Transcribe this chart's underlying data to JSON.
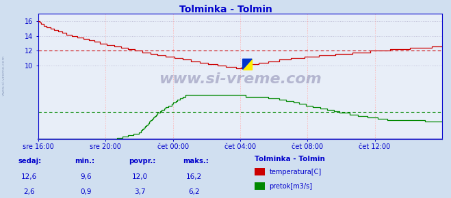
{
  "title": "Tolminka - Tolmin",
  "title_color": "#0000cc",
  "bg_color": "#d0dff0",
  "plot_bg_color": "#e8eef8",
  "grid_color_v": "#ffb0b0",
  "grid_color_h": "#c0c0d8",
  "axis_color": "#0000cc",
  "tick_color": "#0000cc",
  "watermark": "www.si-vreme.com",
  "temp_color": "#cc0000",
  "flow_color": "#008800",
  "avg_temp": 12.0,
  "avg_flow": 3.7,
  "ylim": [
    0,
    17
  ],
  "yticks": [
    10,
    12,
    14,
    16
  ],
  "ytick_labels": [
    "10",
    "12",
    "14",
    "16"
  ],
  "xlim": [
    0,
    24
  ],
  "xtick_positions": [
    0,
    4,
    8,
    12,
    16,
    20
  ],
  "xtick_labels": [
    "sre 16:00",
    "sre 20:00",
    "čet 00:00",
    "čet 04:00",
    "čet 08:00",
    "čet 12:00"
  ],
  "legend_title": "Tolminka - Tolmin",
  "legend_label1": "temperatura[C]",
  "legend_label2": "pretok[m3/s]",
  "footer_labels": [
    "sedaj:",
    "min.:",
    "povpr.:",
    "maks.:"
  ],
  "footer_temp": [
    "12,6",
    "9,6",
    "12,0",
    "16,2"
  ],
  "footer_flow": [
    "2,6",
    "0,9",
    "3,7",
    "6,2"
  ],
  "footer_color": "#0000cc"
}
